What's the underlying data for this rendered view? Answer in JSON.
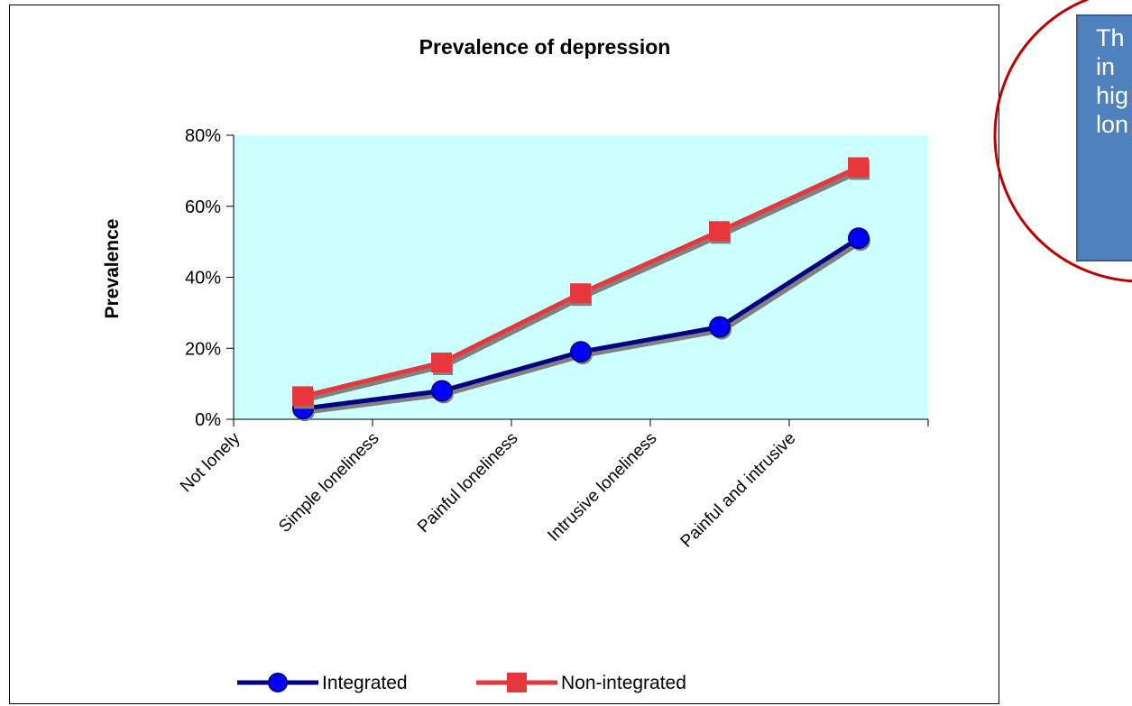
{
  "colors": {
    "plot_bg": "#ccffff",
    "integrated": "#000080",
    "non_integrated": "#e8363d",
    "callout_bg": "#4f81bd",
    "ellipse": "#c00000"
  },
  "chart_data": {
    "type": "line",
    "title": "Prevalence of depression",
    "xlabel": "",
    "ylabel": "Prevalence",
    "categories": [
      "Not lonely",
      "Simple loneliness",
      "Painful loneliness",
      "Intrusive loneliness",
      "Painful and intrusive"
    ],
    "series": [
      {
        "name": "Integrated",
        "values": [
          0.03,
          0.08,
          0.19,
          0.26,
          0.51
        ],
        "marker": "circle",
        "color": "#000080"
      },
      {
        "name": "Non-integrated",
        "values": [
          0.065,
          0.16,
          0.355,
          0.53,
          0.71
        ],
        "marker": "square",
        "color": "#e8363d"
      }
    ],
    "ylim": [
      0,
      0.8
    ],
    "yticks": [
      0,
      0.2,
      0.4,
      0.6,
      0.8
    ],
    "ytick_labels": [
      "0%",
      "20%",
      "40%",
      "60%",
      "80%"
    ],
    "grid": false,
    "legend": "bottom"
  },
  "callout": {
    "lines": [
      "Th",
      "in",
      "hig",
      "lon"
    ]
  }
}
